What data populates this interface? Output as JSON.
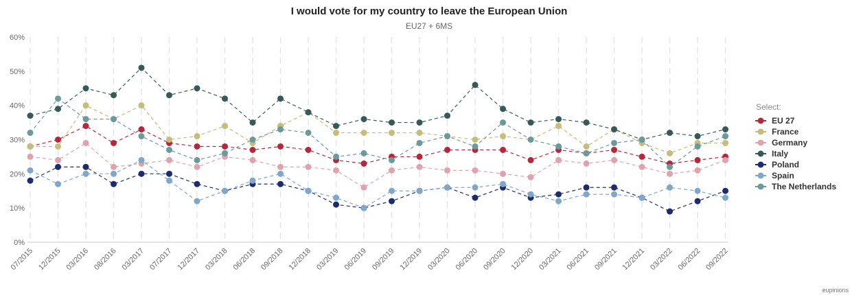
{
  "credit": "eupinions",
  "chart_data": {
    "type": "line",
    "title": "I would vote for my country to leave the European Union",
    "subtitle": "EU27 + 6MS",
    "xlabel": "",
    "ylabel": "",
    "ylim": [
      0,
      60
    ],
    "yticks": [
      "0%",
      "10%",
      "20%",
      "30%",
      "40%",
      "50%",
      "60%"
    ],
    "grid": "vertical dashed",
    "legend": {
      "title": "Select:",
      "position": "right"
    },
    "x": [
      "07/2015",
      "12/2015",
      "03/2016",
      "08/2016",
      "03/2017",
      "07/2017",
      "12/2017",
      "03/2018",
      "06/2018",
      "09/2018",
      "12/2018",
      "03/2019",
      "06/2019",
      "09/2019",
      "12/2019",
      "03/2020",
      "06/2020",
      "09/2020",
      "12/2020",
      "03/2021",
      "06/2021",
      "09/2021",
      "12/2021",
      "03/2022",
      "06/2022",
      "09/2022"
    ],
    "series": [
      {
        "name": "EU 27",
        "color": "#b5283c",
        "values": [
          28,
          30,
          34,
          29,
          33,
          29,
          28,
          28,
          27,
          28,
          27,
          24,
          23,
          25,
          25,
          27,
          27,
          27,
          24,
          27,
          26,
          27,
          25,
          23,
          24,
          25
        ]
      },
      {
        "name": "France",
        "color": "#c6bd7a",
        "values": [
          28,
          28,
          40,
          36,
          40,
          30,
          31,
          34,
          29,
          34,
          38,
          32,
          32,
          32,
          32,
          31,
          30,
          31,
          30,
          34,
          28,
          33,
          29,
          26,
          29,
          29
        ]
      },
      {
        "name": "Germany",
        "color": "#e0a3ae",
        "values": [
          25,
          24,
          29,
          22,
          23,
          24,
          22,
          25,
          24,
          22,
          22,
          21,
          16,
          21,
          22,
          21,
          21,
          20,
          19,
          24,
          23,
          24,
          22,
          20,
          21,
          24
        ]
      },
      {
        "name": "Italy",
        "color": "#38595a",
        "values": [
          37,
          39,
          45,
          43,
          51,
          43,
          45,
          42,
          35,
          42,
          38,
          34,
          36,
          35,
          35,
          37,
          46,
          39,
          35,
          36,
          35,
          33,
          30,
          32,
          31,
          33
        ]
      },
      {
        "name": "Poland",
        "color": "#1c2c6e",
        "values": [
          18,
          22,
          22,
          17,
          20,
          20,
          17,
          15,
          17,
          17,
          15,
          11,
          10,
          12,
          15,
          16,
          13,
          16,
          13,
          14,
          16,
          16,
          13,
          9,
          12,
          15
        ]
      },
      {
        "name": "Spain",
        "color": "#7ea7c9",
        "values": [
          21,
          17,
          20,
          20,
          24,
          18,
          12,
          15,
          18,
          20,
          15,
          13,
          10,
          15,
          15,
          16,
          16,
          17,
          14,
          12,
          14,
          14,
          13,
          16,
          15,
          13
        ]
      },
      {
        "name": "The Netherlands",
        "color": "#6b9a9c",
        "values": [
          32,
          42,
          36,
          36,
          31,
          27,
          24,
          26,
          30,
          33,
          32,
          25,
          26,
          24,
          29,
          31,
          28,
          35,
          30,
          28,
          26,
          29,
          30,
          22,
          28,
          31
        ]
      }
    ]
  }
}
